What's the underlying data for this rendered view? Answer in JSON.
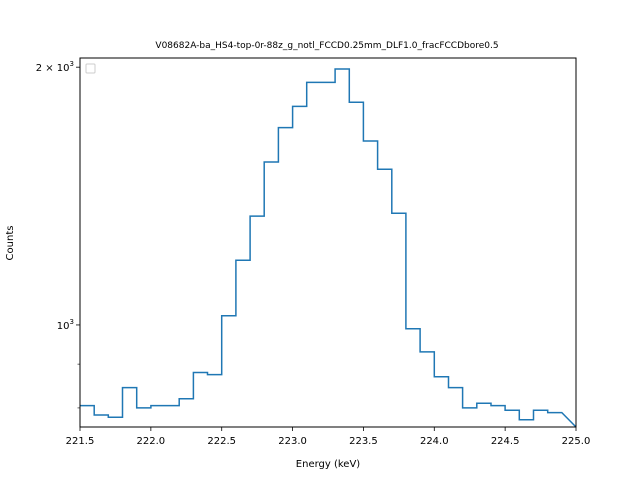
{
  "chart_data": {
    "type": "line",
    "drawstyle": "steps",
    "title": "V08682A-ba_HS4-top-0r-88z_g_notl_FCCD0.25mm_DLF1.0_fracFCCDbore0.5",
    "xlabel": "Energy (keV)",
    "ylabel": "Counts",
    "xlim": [
      221.5,
      225.0
    ],
    "ylim": [
      760,
      2050
    ],
    "yscale": "log",
    "grid": false,
    "legend": "upper-left",
    "x_ticks": [
      {
        "value": 221.5,
        "label": "221.5"
      },
      {
        "value": 222.0,
        "label": "222.0"
      },
      {
        "value": 222.5,
        "label": "222.5"
      },
      {
        "value": 223.0,
        "label": "223.0"
      },
      {
        "value": 223.5,
        "label": "223.5"
      },
      {
        "value": 224.0,
        "label": "224.0"
      },
      {
        "value": 224.5,
        "label": "224.5"
      },
      {
        "value": 225.0,
        "label": "225.0"
      }
    ],
    "y_major_ticks": [
      {
        "value": 1000,
        "label": "10",
        "exp": "3"
      },
      {
        "value": 2000,
        "label": "2 × 10",
        "exp": "3"
      }
    ],
    "y_minor_ticks": [
      800,
      900
    ],
    "color": "#1f77b4",
    "series": [
      {
        "bin_edges": [
          221.5,
          221.6,
          221.7,
          221.8,
          221.9,
          222.0,
          222.1,
          222.2,
          222.3,
          222.4,
          222.5,
          222.6,
          222.7,
          222.8,
          222.9,
          223.0,
          223.1,
          223.2,
          223.3,
          223.4,
          223.5,
          223.6,
          223.7,
          223.8,
          223.9,
          224.0,
          224.1,
          224.2,
          224.3,
          224.4,
          224.5,
          224.6,
          224.7,
          224.8,
          224.9
        ],
        "counts": [
          805,
          785,
          780,
          845,
          800,
          805,
          805,
          820,
          880,
          875,
          1025,
          1190,
          1340,
          1550,
          1700,
          1800,
          1920,
          1920,
          1990,
          1820,
          1640,
          1520,
          1350,
          990,
          930,
          870,
          845,
          800,
          810,
          805,
          795,
          775,
          795,
          790
        ]
      }
    ]
  }
}
